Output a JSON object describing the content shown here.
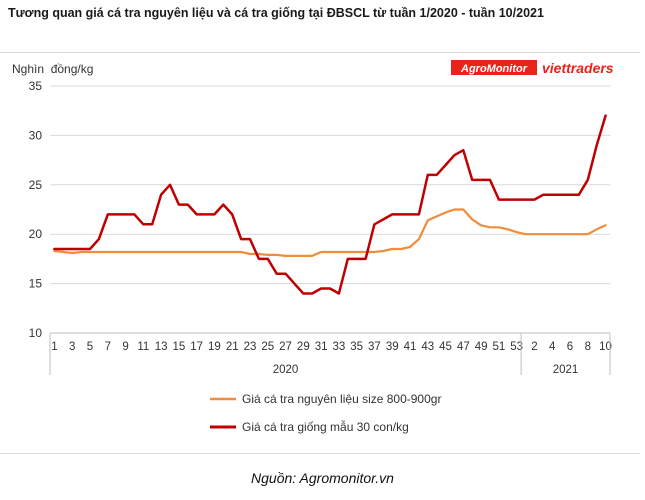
{
  "title": "Tương quan giá cá tra nguyên liệu và cá tra giống tại ĐBSCL từ tuần 1/2020 - tuần 10/2021",
  "source": "Nguồn: Agromonitor.vn",
  "logos": {
    "agromonitor": "AgroMonitor",
    "viettraders": "viettraders"
  },
  "colors": {
    "series1": "#F28C38",
    "series2": "#C00000",
    "grid": "#d9d9d9",
    "logo_bg": "#E8231A",
    "logo2": "#E8231A"
  },
  "chart_data": {
    "type": "line",
    "ylabel": "Nghìn  đồng/kg",
    "ylim": [
      10,
      35
    ],
    "yticks": [
      10,
      15,
      20,
      25,
      30,
      35
    ],
    "grid": true,
    "legend_position": "bottom",
    "x_tick_labels": [
      "1",
      "3",
      "5",
      "7",
      "9",
      "11",
      "13",
      "15",
      "17",
      "19",
      "21",
      "23",
      "25",
      "27",
      "29",
      "31",
      "33",
      "35",
      "37",
      "39",
      "41",
      "43",
      "45",
      "47",
      "49",
      "51",
      "53",
      "2",
      "4",
      "6",
      "8",
      "10"
    ],
    "groups": [
      {
        "label": "2020",
        "count": 53
      },
      {
        "label": "2021",
        "count": 10
      }
    ],
    "series": [
      {
        "name": "Giá cá tra nguyên liệu size 800-900gr",
        "color": "#F28C38",
        "values": [
          18.3,
          18.2,
          18.1,
          18.2,
          18.2,
          18.2,
          18.2,
          18.2,
          18.2,
          18.2,
          18.2,
          18.2,
          18.2,
          18.2,
          18.2,
          18.2,
          18.2,
          18.2,
          18.2,
          18.2,
          18.2,
          18.2,
          18.0,
          18.0,
          17.9,
          17.9,
          17.8,
          17.8,
          17.8,
          17.8,
          18.2,
          18.2,
          18.2,
          18.2,
          18.2,
          18.2,
          18.2,
          18.3,
          18.5,
          18.5,
          18.7,
          19.5,
          21.4,
          21.8,
          22.2,
          22.5,
          22.5,
          21.5,
          20.9,
          20.7,
          20.7,
          20.5,
          20.2,
          20.0,
          20.0,
          20.0,
          20.0,
          20.0,
          20.0,
          20.0,
          20.0,
          20.5,
          20.9
        ]
      },
      {
        "name": "Giá cá tra giống mẫu 30 con/kg",
        "color": "#C00000",
        "values": [
          18.5,
          18.5,
          18.5,
          18.5,
          18.5,
          19.5,
          22.0,
          22.0,
          22.0,
          22.0,
          21.0,
          21.0,
          24.0,
          25.0,
          23.0,
          23.0,
          22.0,
          22.0,
          22.0,
          23.0,
          22.0,
          19.5,
          19.5,
          17.5,
          17.5,
          16.0,
          16.0,
          15.0,
          14.0,
          14.0,
          14.5,
          14.5,
          14.0,
          17.5,
          17.5,
          17.5,
          21.0,
          21.5,
          22.0,
          22.0,
          22.0,
          22.0,
          26.0,
          26.0,
          27.0,
          28.0,
          28.5,
          25.5,
          25.5,
          25.5,
          23.5,
          23.5,
          23.5,
          23.5,
          23.5,
          24.0,
          24.0,
          24.0,
          24.0,
          24.0,
          25.5,
          29.0,
          32.0
        ]
      }
    ]
  }
}
